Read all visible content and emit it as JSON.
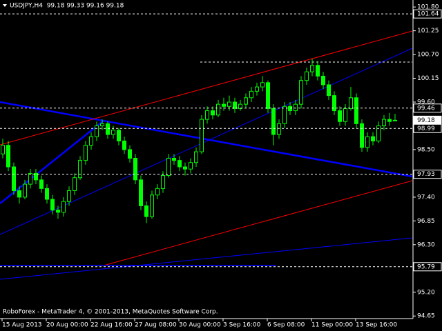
{
  "chart_data": {
    "type": "candlestick",
    "title": "USDJPY,H4  99.18 99.33 99.16 99.18",
    "footer": "RoboForex - MetaTrader 4, © 2001-2013, MetaQuotes Software Corp.",
    "time_labels": [
      "15 Aug 2013",
      "20 Aug 00:00",
      "22 Aug 16:00",
      "27 Aug 08:00",
      "30 Aug 00:00",
      "3 Sep 16:00",
      "6 Sep 08:00",
      "11 Sep 00:00",
      "13 Sep 16:00"
    ],
    "open": [
      98.4,
      98.6,
      98.1,
      97.55,
      97.4,
      97.7,
      97.95,
      97.8,
      97.6,
      97.35,
      97.1,
      97.05,
      97.3,
      97.55,
      97.85,
      98.25,
      98.6,
      98.8,
      99.05,
      99.1,
      98.85,
      98.95,
      98.7,
      98.5,
      98.3,
      97.8,
      97.2,
      96.95,
      97.45,
      97.6,
      97.9,
      98.3,
      98.25,
      98.1,
      98.05,
      98.2,
      98.45,
      99.2,
      99.4,
      99.3,
      99.55,
      99.5,
      99.6,
      99.45,
      99.55,
      99.7,
      99.85,
      99.95,
      100.05,
      99.45,
      98.85,
      99.1,
      99.5,
      99.4,
      99.55,
      100.1,
      100.3,
      100.45,
      100.2,
      100,
      99.75,
      99.4,
      99.15,
      99.45,
      99.7,
      99.1,
      98.55,
      98.8,
      98.7,
      99.05,
      99.2,
      99.18
    ],
    "high": [
      98.75,
      98.7,
      98.2,
      97.65,
      97.8,
      98.05,
      98.05,
      97.9,
      97.7,
      97.45,
      97.2,
      97.4,
      97.65,
      97.95,
      98.35,
      98.7,
      98.9,
      99.15,
      99.2,
      99.15,
      99.05,
      99,
      98.8,
      98.6,
      98.4,
      97.9,
      97.3,
      97.55,
      97.7,
      98,
      98.4,
      98.4,
      98.35,
      98.2,
      98.3,
      98.55,
      99.3,
      99.5,
      99.5,
      99.65,
      99.7,
      99.75,
      99.7,
      99.65,
      99.8,
      99.95,
      100.05,
      100.2,
      100.1,
      99.55,
      99.2,
      99.6,
      99.6,
      99.65,
      100.2,
      100.4,
      100.6,
      100.55,
      100.3,
      100.1,
      99.85,
      99.5,
      99.55,
      99.95,
      99.8,
      99.2,
      98.9,
      98.9,
      99.15,
      99.3,
      99.35,
      99.33
    ],
    "low": [
      98.3,
      98,
      97.45,
      97.25,
      97.35,
      97.6,
      97.7,
      97.5,
      97.25,
      97,
      96.9,
      96.95,
      97.2,
      97.45,
      97.8,
      98.15,
      98.5,
      98.7,
      98.95,
      98.75,
      98.75,
      98.6,
      98.4,
      98.2,
      97.7,
      97.1,
      96.8,
      96.9,
      97.35,
      97.5,
      97.85,
      98.15,
      98,
      97.9,
      97.95,
      98.1,
      98.4,
      99.1,
      99.2,
      99.25,
      99.4,
      99.4,
      99.35,
      99.4,
      99.45,
      99.6,
      99.75,
      99.85,
      99.35,
      98.6,
      98.75,
      99,
      99.3,
      99.3,
      99.45,
      100,
      100.2,
      100.1,
      99.9,
      99.65,
      99.3,
      99.05,
      99.05,
      99.4,
      99,
      98.45,
      98.45,
      98.6,
      98.65,
      98.95,
      99.05,
      99.16
    ],
    "close": [
      98.6,
      98.1,
      97.55,
      97.4,
      97.7,
      97.95,
      97.8,
      97.6,
      97.35,
      97.1,
      97.05,
      97.3,
      97.55,
      97.85,
      98.25,
      98.6,
      98.8,
      99.05,
      99.1,
      98.85,
      98.95,
      98.7,
      98.5,
      98.3,
      97.8,
      97.2,
      96.95,
      97.45,
      97.6,
      97.9,
      98.3,
      98.25,
      98.1,
      98.05,
      98.2,
      98.45,
      99.2,
      99.4,
      99.3,
      99.55,
      99.5,
      99.6,
      99.45,
      99.55,
      99.7,
      99.85,
      99.95,
      100.05,
      99.45,
      98.85,
      99.1,
      99.5,
      99.4,
      99.55,
      100.1,
      100.3,
      100.45,
      100.2,
      100,
      99.75,
      99.4,
      99.15,
      99.45,
      99.7,
      99.1,
      98.55,
      98.8,
      98.7,
      99.05,
      99.2,
      99.15,
      99.18
    ],
    "color": "#00ff00",
    "levels": [
      101.64,
      99.46,
      99.18,
      98.99,
      97.93,
      95.79
    ],
    "current_price_index": 2,
    "ylim": [
      94.59,
      101.93
    ],
    "yticks": [
      {
        "value": 101.8,
        "label": "101.80"
      },
      101.25,
      {
        "value": 100.7,
        "label": "100.70"
      },
      100.15,
      {
        "value": 99.6,
        "label": "99.60"
      },
      99.05,
      {
        "value": 98.5,
        "label": "98.50"
      },
      97.95,
      {
        "value": 97.4,
        "label": "97.40"
      },
      96.85,
      {
        "value": 96.3,
        "label": "96.30"
      },
      95.75,
      {
        "value": 95.2,
        "label": "95.20"
      },
      94.65
    ]
  }
}
